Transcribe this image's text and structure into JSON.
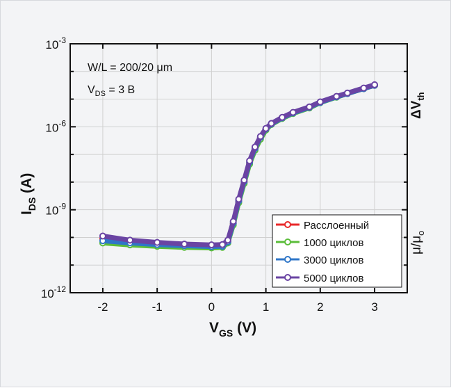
{
  "chart_data": {
    "type": "line",
    "x_label_main": "V",
    "x_label_sub": "GS",
    "x_label_unit": " (V)",
    "y_label_main": "I",
    "y_label_sub": "DS",
    "y_label_unit": " (A)",
    "xlim": [
      -2.6,
      3.6
    ],
    "ylim_log10": [
      -12,
      -3
    ],
    "x_ticks": [
      -2,
      -1,
      0,
      1,
      2,
      3
    ],
    "x_tick_labels": [
      "-2",
      "-1",
      "0",
      "1",
      "2",
      "3"
    ],
    "y_ticks_log10": [
      -3,
      -6,
      -9,
      -12
    ],
    "y_tick_base": "10",
    "y_tick_exponents": [
      "-3",
      "-6",
      "-9",
      "-12"
    ],
    "annotation_wl": "W/L = 200/20 μm",
    "annotation_vds_main": "V",
    "annotation_vds_sub": "DS",
    "annotation_vds_value": " = 3 В",
    "side_label_top_main": "ΔV",
    "side_label_top_sub": "th",
    "side_label_bottom_main": "μ/μ",
    "side_label_bottom_sub": "o",
    "legend_position": "lower-right",
    "series": [
      {
        "name": "Расслоенный",
        "color": "#e8282a",
        "x": [
          -2.0,
          -1.5,
          -1.0,
          -0.5,
          0.0,
          0.2,
          0.3,
          0.4,
          0.5,
          0.6,
          0.7,
          0.8,
          0.9,
          1.0,
          1.1,
          1.3,
          1.5,
          1.8,
          2.0,
          2.3,
          2.5,
          2.8,
          3.0
        ],
        "log10_y": [
          -10.05,
          -10.17,
          -10.23,
          -10.28,
          -10.31,
          -10.3,
          -10.15,
          -9.5,
          -8.7,
          -8.0,
          -7.3,
          -6.8,
          -6.4,
          -6.1,
          -5.9,
          -5.68,
          -5.5,
          -5.3,
          -5.12,
          -4.92,
          -4.8,
          -4.62,
          -4.5
        ]
      },
      {
        "name": "1000 циклов",
        "color": "#5bbd3a",
        "x": [
          -2.0,
          -1.5,
          -1.0,
          -0.5,
          0.0,
          0.2,
          0.3,
          0.4,
          0.5,
          0.6,
          0.7,
          0.8,
          0.9,
          1.0,
          1.1,
          1.3,
          1.5,
          1.8,
          2.0,
          2.3,
          2.5,
          2.8,
          3.0
        ],
        "log10_y": [
          -10.2,
          -10.27,
          -10.32,
          -10.36,
          -10.38,
          -10.36,
          -10.2,
          -9.55,
          -8.75,
          -8.05,
          -7.35,
          -6.85,
          -6.45,
          -6.12,
          -5.92,
          -5.7,
          -5.52,
          -5.32,
          -5.13,
          -4.93,
          -4.8,
          -4.62,
          -4.5
        ]
      },
      {
        "name": "3000 циклов",
        "color": "#2f76c8",
        "x": [
          -2.0,
          -1.5,
          -1.0,
          -0.5,
          0.0,
          0.2,
          0.3,
          0.4,
          0.5,
          0.6,
          0.7,
          0.8,
          0.9,
          1.0,
          1.1,
          1.3,
          1.5,
          1.8,
          2.0,
          2.3,
          2.5,
          2.8,
          3.0
        ],
        "log10_y": [
          -10.12,
          -10.2,
          -10.26,
          -10.3,
          -10.33,
          -10.32,
          -10.16,
          -9.48,
          -8.68,
          -7.98,
          -7.28,
          -6.78,
          -6.38,
          -6.08,
          -5.9,
          -5.68,
          -5.5,
          -5.3,
          -5.12,
          -4.92,
          -4.8,
          -4.62,
          -4.5
        ]
      },
      {
        "name": "5000 циклов",
        "color": "#6a44a3",
        "x": [
          -2.0,
          -1.5,
          -1.0,
          -0.5,
          0.0,
          0.2,
          0.3,
          0.4,
          0.5,
          0.6,
          0.7,
          0.8,
          0.9,
          1.0,
          1.1,
          1.3,
          1.5,
          1.8,
          2.0,
          2.3,
          2.5,
          2.8,
          3.0
        ],
        "log10_y": [
          -9.95,
          -10.1,
          -10.18,
          -10.24,
          -10.27,
          -10.26,
          -10.1,
          -9.42,
          -8.62,
          -7.93,
          -7.23,
          -6.73,
          -6.35,
          -6.06,
          -5.88,
          -5.66,
          -5.48,
          -5.28,
          -5.1,
          -4.9,
          -4.78,
          -4.6,
          -4.48
        ]
      }
    ]
  }
}
